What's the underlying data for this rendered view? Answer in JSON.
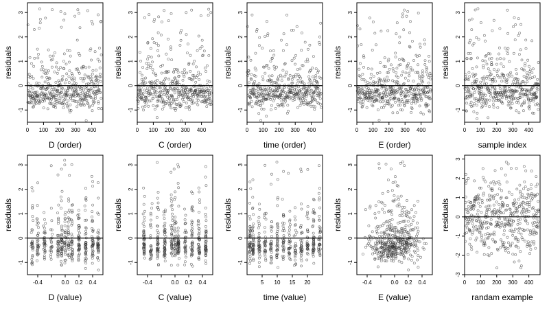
{
  "chart_data": [
    {
      "type": "scatter",
      "xlabel": "D (order)",
      "ylabel": "residuals",
      "xlim": [
        0,
        470
      ],
      "ylim": [
        -1.5,
        3.4
      ],
      "xticks": [
        0,
        100,
        200,
        300,
        400
      ],
      "xtick_labels": [
        "0",
        "100",
        "200",
        "300",
        "400"
      ],
      "yticks": [
        -1,
        0,
        1,
        2,
        3
      ],
      "ytick_labels": [
        "-1",
        "0",
        "1",
        "2",
        "3"
      ],
      "hline": 0,
      "n": 450,
      "pattern": "order"
    },
    {
      "type": "scatter",
      "xlabel": "C (order)",
      "ylabel": "residuals",
      "xlim": [
        0,
        470
      ],
      "ylim": [
        -1.5,
        3.4
      ],
      "xticks": [
        0,
        100,
        200,
        300,
        400
      ],
      "xtick_labels": [
        "0",
        "100",
        "200",
        "300",
        "400"
      ],
      "yticks": [
        -1,
        0,
        1,
        2,
        3
      ],
      "ytick_labels": [
        "-1",
        "0",
        "1",
        "2",
        "3"
      ],
      "hline": 0,
      "n": 450,
      "pattern": "order"
    },
    {
      "type": "scatter",
      "xlabel": "time (order)",
      "ylabel": "residuals",
      "xlim": [
        0,
        470
      ],
      "ylim": [
        -1.5,
        3.4
      ],
      "xticks": [
        0,
        100,
        200,
        300,
        400
      ],
      "xtick_labels": [
        "0",
        "100",
        "200",
        "300",
        "400"
      ],
      "yticks": [
        -1,
        0,
        1,
        2,
        3
      ],
      "ytick_labels": [
        "-1",
        "0",
        "1",
        "2",
        "3"
      ],
      "hline": 0,
      "n": 450,
      "pattern": "order"
    },
    {
      "type": "scatter",
      "xlabel": "E (order)",
      "ylabel": "residuals",
      "xlim": [
        0,
        470
      ],
      "ylim": [
        -1.5,
        3.4
      ],
      "xticks": [
        0,
        100,
        200,
        300,
        400
      ],
      "xtick_labels": [
        "0",
        "100",
        "200",
        "300",
        "400"
      ],
      "yticks": [
        -1,
        0,
        1,
        2,
        3
      ],
      "ytick_labels": [
        "-1",
        "0",
        "1",
        "2",
        "3"
      ],
      "hline": 0,
      "n": 450,
      "pattern": "order"
    },
    {
      "type": "scatter",
      "xlabel": "sample index",
      "ylabel": "residuals",
      "xlim": [
        0,
        470
      ],
      "ylim": [
        -1.5,
        3.4
      ],
      "xticks": [
        0,
        100,
        200,
        300,
        400
      ],
      "xtick_labels": [
        "0",
        "100",
        "200",
        "300",
        "400"
      ],
      "yticks": [
        -1,
        0,
        1,
        2,
        3
      ],
      "ytick_labels": [
        "-1",
        "0",
        "1",
        "2",
        "3"
      ],
      "hline": 0,
      "n": 450,
      "pattern": "order"
    },
    {
      "type": "scatter",
      "xlabel": "D (value)",
      "ylabel": "residuals",
      "xlim": [
        -0.55,
        0.55
      ],
      "ylim": [
        -1.5,
        3.4
      ],
      "xticks": [
        -0.4,
        -0.2,
        0,
        0.2,
        0.4
      ],
      "xtick_labels": [
        "-0.4",
        "",
        "0.0",
        "0.2",
        "0.4"
      ],
      "yticks": [
        -1,
        0,
        1,
        2,
        3
      ],
      "ytick_labels": [
        "-1",
        "0",
        "1",
        "2",
        "3"
      ],
      "hline": 0,
      "n": 450,
      "pattern": "columns",
      "column_values": [
        -0.48,
        -0.4,
        -0.3,
        -0.2,
        -0.1,
        -0.05,
        0,
        0.05,
        0.1,
        0.2,
        0.3,
        0.4,
        0.48
      ]
    },
    {
      "type": "scatter",
      "xlabel": "C (value)",
      "ylabel": "residuals",
      "xlim": [
        -0.55,
        0.55
      ],
      "ylim": [
        -1.5,
        3.4
      ],
      "xticks": [
        -0.4,
        -0.2,
        0,
        0.2,
        0.4
      ],
      "xtick_labels": [
        "-0.4",
        "",
        "0.0",
        "0.2",
        "0.4"
      ],
      "yticks": [
        -1,
        0,
        1,
        2,
        3
      ],
      "ytick_labels": [
        "-1",
        "0",
        "1",
        "2",
        "3"
      ],
      "hline": 0,
      "n": 450,
      "pattern": "columns",
      "column_values": [
        -0.45,
        -0.35,
        -0.25,
        -0.15,
        -0.05,
        0,
        0.05,
        0.15,
        0.25,
        0.35,
        0.45
      ]
    },
    {
      "type": "scatter",
      "xlabel": "time (value)",
      "ylabel": "residuals",
      "xlim": [
        0,
        25
      ],
      "ylim": [
        -1.5,
        3.4
      ],
      "xticks": [
        5,
        10,
        15,
        20
      ],
      "xtick_labels": [
        "5",
        "10",
        "15",
        "20"
      ],
      "yticks": [
        -1,
        0,
        1,
        2,
        3
      ],
      "ytick_labels": [
        "-1",
        "0",
        "1",
        "2",
        "3"
      ],
      "hline": 0,
      "n": 450,
      "pattern": "columns",
      "column_values": [
        1,
        2,
        4,
        6,
        8,
        10,
        12,
        14,
        16,
        18,
        20,
        22,
        24
      ]
    },
    {
      "type": "scatter",
      "xlabel": "E (value)",
      "ylabel": "residuals",
      "xlim": [
        -0.55,
        0.55
      ],
      "ylim": [
        -1.5,
        3.4
      ],
      "xticks": [
        -0.4,
        -0.2,
        0,
        0.2,
        0.4
      ],
      "xtick_labels": [
        "-0.4",
        "",
        "0.0",
        "0.2",
        "0.4"
      ],
      "yticks": [
        -1,
        0,
        1,
        2,
        3
      ],
      "ytick_labels": [
        "-1",
        "0",
        "1",
        "2",
        "3"
      ],
      "hline": 0,
      "n": 450,
      "pattern": "cloud"
    },
    {
      "type": "scatter",
      "xlabel": "randam example",
      "ylabel": "residuals",
      "xlim": [
        0,
        470
      ],
      "ylim": [
        -3,
        3.2
      ],
      "xticks": [
        0,
        100,
        200,
        300,
        400
      ],
      "xtick_labels": [
        "0",
        "100",
        "200",
        "300",
        "400"
      ],
      "yticks": [
        -3,
        -2,
        -1,
        0,
        1,
        2,
        3
      ],
      "ytick_labels": [
        "-3",
        "-2",
        "-1",
        "0",
        "1",
        "2",
        "3"
      ],
      "hline": 0,
      "n": 450,
      "pattern": "random"
    }
  ],
  "colors": {
    "point_stroke": "#333333",
    "axis": "#000000",
    "hline": "#000000"
  }
}
